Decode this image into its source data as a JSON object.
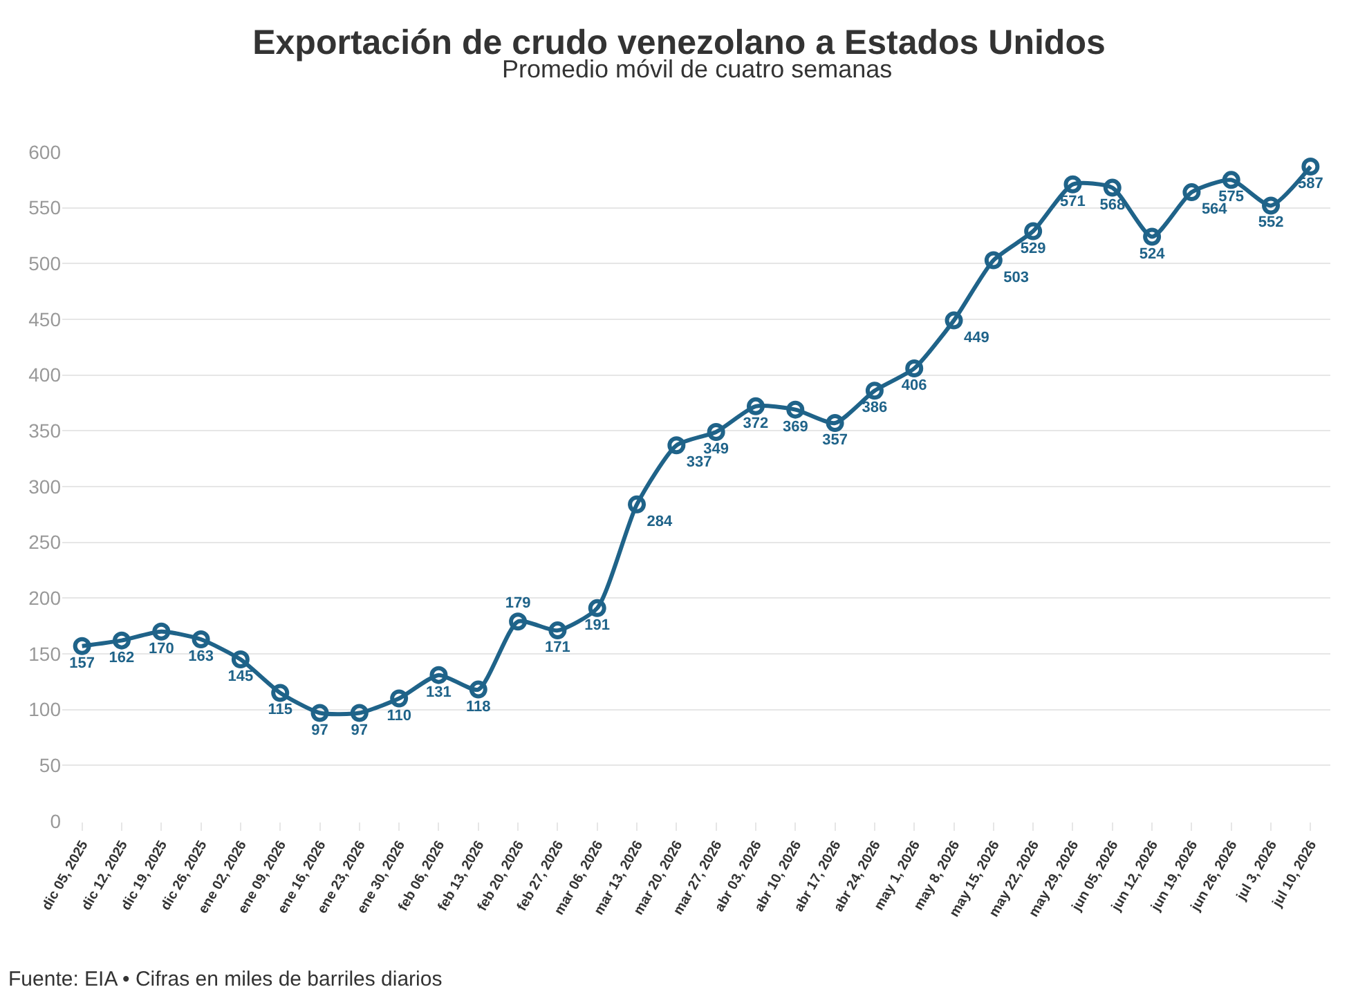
{
  "chart_data": {
    "type": "line",
    "title": "Exportación de crudo venezolano a Estados Unidos",
    "subtitle": "Promedio móvil de cuatro semanas",
    "categories": [
      "dic 05, 2025",
      "dic 12, 2025",
      "dic 19, 2025",
      "dic 26, 2025",
      "ene 02, 2026",
      "ene 09, 2026",
      "ene 16, 2026",
      "ene 23, 2026",
      "ene 30, 2026",
      "feb 06, 2026",
      "feb 13, 2026",
      "feb 20, 2026",
      "feb 27, 2026",
      "mar 06, 2026",
      "mar 13, 2026",
      "mar 20, 2026",
      "mar 27, 2026",
      "abr 03, 2026",
      "abr 10, 2026",
      "abr 17, 2026",
      "abr 24, 2026",
      "may 1, 2026",
      "may 8, 2026",
      "may 15, 2026",
      "may 22, 2026",
      "may 29, 2026",
      "jun 05, 2026",
      "jun 12, 2026",
      "jun 19, 2026",
      "jun 26, 2026",
      "jul 3, 2026",
      "jul 10, 2026"
    ],
    "values": [
      157,
      162,
      170,
      163,
      145,
      115,
      97,
      97,
      110,
      131,
      118,
      179,
      171,
      191,
      284,
      337,
      349,
      372,
      369,
      357,
      386,
      406,
      449,
      503,
      529,
      571,
      568,
      524,
      564,
      575,
      552,
      587
    ],
    "color": "#1f6389",
    "ylim": [
      0,
      600
    ],
    "yticks": [
      0,
      50,
      100,
      150,
      200,
      250,
      300,
      350,
      400,
      450,
      500,
      550,
      600
    ],
    "grid": "y",
    "marker": "circle",
    "line_style": "solid",
    "data_labels": true,
    "annotations": [
      "Fuente: EIA • Cifras en miles de barriles diarios"
    ]
  }
}
